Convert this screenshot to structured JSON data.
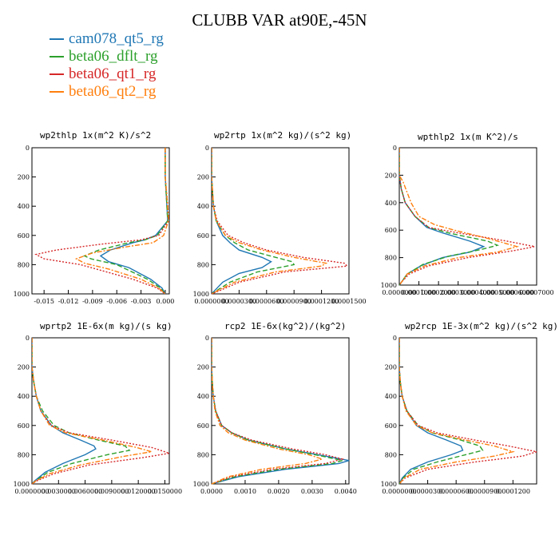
{
  "title": "CLUBB VAR at90E,-45N",
  "legend": [
    {
      "name": "cam078_qt5_rg",
      "color": "#1f77b4"
    },
    {
      "name": "beta06_dflt_rg",
      "color": "#2ca02c"
    },
    {
      "name": "beta06_qt1_rg",
      "color": "#d62728"
    },
    {
      "name": "beta06_qt2_rg",
      "color": "#ff7f0e"
    }
  ],
  "chart_data": [
    {
      "type": "line",
      "title": "wp2thlp  1x(m^2 K)/s^2",
      "xlim": [
        -0.0165,
        0.0005
      ],
      "ylim": [
        1000,
        0
      ],
      "x_ticks": [
        "-0.015",
        "-0.012",
        "-0.009",
        "-0.006",
        "-0.003",
        "0.000"
      ],
      "x_tick_values": [
        -0.015,
        -0.012,
        -0.009,
        -0.006,
        -0.003,
        0.0
      ],
      "y_ticks": [
        "0",
        "200",
        "400",
        "600",
        "800",
        "1000"
      ],
      "y_tick_values": [
        0,
        200,
        400,
        600,
        800,
        1000
      ],
      "series": [
        {
          "name": "cam078_qt5_rg",
          "y": [
            0,
            200,
            400,
            500,
            600,
            630,
            650,
            700,
            740,
            780,
            820,
            900,
            960,
            1000
          ],
          "x": [
            0,
            0,
            0.0002,
            0.0003,
            -0.0012,
            -0.0025,
            -0.004,
            -0.0068,
            -0.008,
            -0.007,
            -0.0045,
            -0.0018,
            -0.0004,
            0
          ]
        },
        {
          "name": "beta06_dflt_rg",
          "y": [
            0,
            200,
            400,
            500,
            600,
            630,
            650,
            700,
            740,
            760,
            800,
            900,
            960,
            1000
          ],
          "x": [
            0,
            0,
            0.0002,
            0.0003,
            -0.001,
            -0.0025,
            -0.0045,
            -0.0082,
            -0.01,
            -0.0092,
            -0.006,
            -0.0022,
            -0.0006,
            0
          ]
        },
        {
          "name": "beta06_qt1_rg",
          "y": [
            0,
            200,
            400,
            500,
            600,
            630,
            660,
            700,
            730,
            760,
            800,
            900,
            960,
            1000
          ],
          "x": [
            0,
            0,
            0.0003,
            0.0004,
            -0.0008,
            -0.003,
            -0.008,
            -0.0135,
            -0.016,
            -0.015,
            -0.0105,
            -0.004,
            -0.001,
            0
          ]
        },
        {
          "name": "beta06_qt2_rg",
          "y": [
            0,
            200,
            400,
            500,
            600,
            650,
            680,
            720,
            760,
            790,
            830,
            900,
            960,
            1000
          ],
          "x": [
            0,
            0,
            0.0003,
            0.0004,
            -0.0002,
            -0.0015,
            -0.005,
            -0.009,
            -0.011,
            -0.01,
            -0.007,
            -0.003,
            -0.0008,
            0
          ]
        }
      ]
    },
    {
      "type": "line",
      "title": "wp2rtp  1x(m^2 kg)/(s^2 kg)",
      "xlim": [
        0,
        0.0015
      ],
      "ylim": [
        1000,
        0
      ],
      "x_ticks": [
        "0.0000000",
        "0.0000300",
        "0.0000600",
        "0.0000900",
        "0.0001200",
        "0.0001500"
      ],
      "x_tick_values": [
        0,
        0.0003,
        0.0006,
        0.0009,
        0.0012,
        0.0015
      ],
      "y_ticks": [
        "0",
        "200",
        "400",
        "600",
        "800",
        "1000"
      ],
      "y_tick_values": [
        0,
        200,
        400,
        600,
        800,
        1000
      ],
      "series": [
        {
          "name": "cam078_qt5_rg",
          "y": [
            0,
            200,
            400,
            500,
            600,
            650,
            700,
            750,
            780,
            820,
            860,
            920,
            980,
            1000
          ],
          "x": [
            0,
            0,
            2e-05,
            5e-05,
            0.00012,
            0.0002,
            0.0003,
            0.00055,
            0.00065,
            0.00055,
            0.0003,
            0.00012,
            3e-05,
            0
          ]
        },
        {
          "name": "beta06_dflt_rg",
          "y": [
            0,
            200,
            400,
            500,
            600,
            650,
            700,
            750,
            780,
            800,
            850,
            920,
            980,
            1000
          ],
          "x": [
            0,
            0,
            2e-05,
            5e-05,
            0.00015,
            0.00025,
            0.0004,
            0.0007,
            0.00088,
            0.0009,
            0.0005,
            0.0002,
            5e-05,
            0
          ]
        },
        {
          "name": "beta06_qt1_rg",
          "y": [
            0,
            200,
            400,
            500,
            600,
            650,
            700,
            750,
            790,
            810,
            850,
            920,
            980,
            1000
          ],
          "x": [
            0,
            0,
            2e-05,
            6e-05,
            0.00018,
            0.00035,
            0.0006,
            0.001,
            0.00145,
            0.00148,
            0.0008,
            0.0003,
            8e-05,
            0
          ]
        },
        {
          "name": "beta06_qt2_rg",
          "y": [
            0,
            200,
            400,
            500,
            600,
            650,
            700,
            750,
            790,
            810,
            850,
            920,
            980,
            1000
          ],
          "x": [
            0,
            0,
            2e-05,
            5e-05,
            0.00015,
            0.0003,
            0.00055,
            0.0009,
            0.00125,
            0.0012,
            0.0007,
            0.00025,
            6e-05,
            0
          ]
        }
      ]
    },
    {
      "type": "line",
      "title": "wpthlp2  1x(m K^2)/s",
      "xlim": [
        0,
        0.0007
      ],
      "ylim": [
        1000,
        0
      ],
      "x_ticks": [
        "0.0000000",
        "0.0001000",
        "0.0002000",
        "0.0003000",
        "0.0004000",
        "0.0005000",
        "0.0006000",
        "0.0007000"
      ],
      "x_tick_values": [
        0,
        0.0001,
        0.0002,
        0.0003,
        0.0004,
        0.0005,
        0.0006,
        0.0007
      ],
      "y_ticks": [
        "0",
        "200",
        "400",
        "600",
        "800",
        "1000"
      ],
      "y_tick_values": [
        0,
        200,
        400,
        600,
        800,
        1000
      ],
      "series": [
        {
          "name": "cam078_qt5_rg",
          "y": [
            0,
            200,
            300,
            400,
            500,
            580,
            620,
            680,
            720,
            760,
            800,
            860,
            920,
            980,
            1000
          ],
          "x": [
            0,
            0,
            1e-05,
            3e-05,
            8e-05,
            0.00014,
            0.00022,
            0.00036,
            0.00043,
            0.00036,
            0.00022,
            0.00011,
            4e-05,
            1e-05,
            0
          ]
        },
        {
          "name": "beta06_dflt_rg",
          "y": [
            0,
            200,
            300,
            400,
            500,
            580,
            620,
            680,
            710,
            740,
            790,
            850,
            920,
            980,
            1000
          ],
          "x": [
            0,
            0,
            1e-05,
            3e-05,
            8e-05,
            0.00015,
            0.00025,
            0.00045,
            0.0005,
            0.00042,
            0.00025,
            0.00012,
            4e-05,
            1e-05,
            0
          ]
        },
        {
          "name": "beta06_qt1_rg",
          "y": [
            0,
            200,
            300,
            400,
            500,
            580,
            620,
            680,
            720,
            750,
            800,
            860,
            920,
            980,
            1000
          ],
          "x": [
            0,
            0,
            1e-05,
            3e-05,
            8e-05,
            0.00015,
            0.0003,
            0.00055,
            0.00069,
            0.00058,
            0.00035,
            0.00015,
            5e-05,
            1e-05,
            0
          ]
        },
        {
          "name": "beta06_qt2_rg",
          "y": [
            0,
            200,
            250,
            400,
            500,
            560,
            600,
            660,
            720,
            760,
            800,
            860,
            920,
            980,
            1000
          ],
          "x": [
            0,
            0,
            2e-05,
            6e-05,
            0.0001,
            0.00018,
            0.00028,
            0.00045,
            0.0006,
            0.0005,
            0.0003,
            0.00013,
            4e-05,
            1e-05,
            0
          ]
        }
      ]
    },
    {
      "type": "line",
      "title": "wprtp2  1E-6x(m kg)/(s kg)",
      "xlim": [
        0,
        0.0155
      ],
      "ylim": [
        1000,
        0
      ],
      "x_ticks": [
        "0.0000000",
        "0.0030000",
        "0.0060000",
        "0.0090000",
        "0.0120000",
        "0.0150000"
      ],
      "x_tick_values": [
        0,
        0.003,
        0.006,
        0.009,
        0.012,
        0.015
      ],
      "y_ticks": [
        "0",
        "200",
        "400",
        "600",
        "800",
        "1000"
      ],
      "y_tick_values": [
        0,
        200,
        400,
        600,
        800,
        1000
      ],
      "series": [
        {
          "name": "cam078_qt5_rg",
          "y": [
            0,
            200,
            300,
            400,
            500,
            600,
            650,
            700,
            740,
            760,
            800,
            860,
            920,
            980,
            1000
          ],
          "x": [
            0,
            0,
            0.0002,
            0.0005,
            0.001,
            0.0022,
            0.0035,
            0.0055,
            0.007,
            0.0072,
            0.006,
            0.0035,
            0.0015,
            0.0003,
            0
          ]
        },
        {
          "name": "beta06_dflt_rg",
          "y": [
            0,
            200,
            300,
            400,
            500,
            600,
            650,
            700,
            740,
            770,
            800,
            860,
            920,
            980,
            1000
          ],
          "x": [
            0,
            0,
            0.0002,
            0.0005,
            0.0012,
            0.0025,
            0.0042,
            0.0075,
            0.0105,
            0.011,
            0.0085,
            0.0045,
            0.0018,
            0.0004,
            0
          ]
        },
        {
          "name": "beta06_qt1_rg",
          "y": [
            0,
            200,
            300,
            400,
            500,
            600,
            650,
            700,
            750,
            790,
            820,
            870,
            930,
            980,
            1000
          ],
          "x": [
            0,
            0,
            0.0002,
            0.0005,
            0.001,
            0.0022,
            0.0042,
            0.009,
            0.0135,
            0.0155,
            0.0125,
            0.0065,
            0.0025,
            0.0005,
            0
          ]
        },
        {
          "name": "beta06_qt2_rg",
          "y": [
            0,
            200,
            300,
            400,
            500,
            600,
            650,
            700,
            750,
            780,
            810,
            870,
            930,
            980,
            1000
          ],
          "x": [
            0,
            0,
            0.0002,
            0.0005,
            0.001,
            0.002,
            0.0038,
            0.008,
            0.0118,
            0.0135,
            0.0105,
            0.0055,
            0.002,
            0.0004,
            0
          ]
        }
      ]
    },
    {
      "type": "line",
      "title": "rcp2  1E-6x(kg^2)/(kg^2)",
      "xlim": [
        0,
        0.0041
      ],
      "ylim": [
        1000,
        0
      ],
      "x_ticks": [
        "0.0000",
        "0.0010",
        "0.0020",
        "0.0030",
        "0.0040"
      ],
      "x_tick_values": [
        0,
        0.001,
        0.002,
        0.003,
        0.004
      ],
      "y_ticks": [
        "0",
        "200",
        "400",
        "600",
        "800",
        "1000"
      ],
      "y_tick_values": [
        0,
        200,
        400,
        600,
        800,
        1000
      ],
      "series": [
        {
          "name": "cam078_qt5_rg",
          "y": [
            0,
            200,
            300,
            400,
            500,
            600,
            650,
            700,
            760,
            810,
            840,
            860,
            900,
            950,
            1000
          ],
          "x": [
            0,
            0,
            2e-05,
            5e-05,
            0.00012,
            0.0003,
            0.0006,
            0.0011,
            0.0022,
            0.0034,
            0.0041,
            0.0038,
            0.0022,
            0.0008,
            0
          ]
        },
        {
          "name": "beta06_dflt_rg",
          "y": [
            0,
            200,
            300,
            400,
            500,
            600,
            650,
            700,
            760,
            810,
            840,
            860,
            900,
            950,
            1000
          ],
          "x": [
            0,
            0,
            2e-05,
            5e-05,
            0.00012,
            0.0003,
            0.0006,
            0.0011,
            0.0022,
            0.0033,
            0.0039,
            0.0036,
            0.002,
            0.0007,
            0
          ]
        },
        {
          "name": "beta06_qt1_rg",
          "y": [
            0,
            200,
            300,
            400,
            500,
            600,
            650,
            700,
            760,
            800,
            830,
            860,
            900,
            950,
            1000
          ],
          "x": [
            0,
            0,
            2e-05,
            5e-05,
            0.00012,
            0.0003,
            0.0006,
            0.0012,
            0.0024,
            0.0034,
            0.0039,
            0.0034,
            0.0018,
            0.0006,
            0
          ]
        },
        {
          "name": "beta06_qt2_rg",
          "y": [
            0,
            200,
            300,
            400,
            500,
            600,
            650,
            700,
            760,
            800,
            830,
            860,
            900,
            950,
            1000
          ],
          "x": [
            0,
            0,
            2e-05,
            5e-05,
            0.0001,
            0.00025,
            0.0005,
            0.001,
            0.002,
            0.0029,
            0.0033,
            0.0028,
            0.0015,
            0.0005,
            0
          ]
        }
      ]
    },
    {
      "type": "line",
      "title": "wp2rcp  1E-3x(m^2 kg)/(s^2 kg)",
      "xlim": [
        0,
        0.00145
      ],
      "ylim": [
        1000,
        0
      ],
      "x_ticks": [
        "0.0000000",
        "0.0000300",
        "0.0000600",
        "0.0000900",
        "0.0001200"
      ],
      "x_tick_values": [
        0,
        0.0003,
        0.0006,
        0.0009,
        0.0012
      ],
      "y_ticks": [
        "0",
        "200",
        "400",
        "600",
        "800",
        "1000"
      ],
      "y_tick_values": [
        0,
        200,
        400,
        600,
        800,
        1000
      ],
      "series": [
        {
          "name": "cam078_qt5_rg",
          "y": [
            0,
            200,
            300,
            400,
            500,
            600,
            650,
            700,
            740,
            770,
            800,
            850,
            900,
            960,
            1000
          ],
          "x": [
            0,
            0,
            1e-05,
            3e-05,
            8e-05,
            0.00018,
            0.0003,
            0.0005,
            0.00065,
            0.00067,
            0.00055,
            0.0003,
            0.00012,
            3e-05,
            0
          ]
        },
        {
          "name": "beta06_dflt_rg",
          "y": [
            0,
            200,
            300,
            400,
            500,
            600,
            650,
            700,
            740,
            770,
            800,
            850,
            900,
            960,
            1000
          ],
          "x": [
            0,
            0,
            1e-05,
            3e-05,
            8e-05,
            0.0002,
            0.00035,
            0.00065,
            0.00085,
            0.00088,
            0.0007,
            0.0004,
            0.00015,
            4e-05,
            0
          ]
        },
        {
          "name": "beta06_qt1_rg",
          "y": [
            0,
            200,
            300,
            400,
            500,
            600,
            650,
            700,
            740,
            780,
            810,
            850,
            900,
            960,
            1000
          ],
          "x": [
            0,
            0,
            1e-05,
            3e-05,
            8e-05,
            0.0002,
            0.0004,
            0.0008,
            0.00115,
            0.00145,
            0.0013,
            0.0008,
            0.0003,
            6e-05,
            0
          ]
        },
        {
          "name": "beta06_qt2_rg",
          "y": [
            0,
            200,
            300,
            400,
            500,
            600,
            650,
            700,
            740,
            780,
            810,
            850,
            900,
            960,
            1000
          ],
          "x": [
            0,
            0,
            1e-05,
            3e-05,
            7e-05,
            0.00018,
            0.00035,
            0.0007,
            0.001,
            0.0012,
            0.001,
            0.0006,
            0.00022,
            5e-05,
            0
          ]
        }
      ]
    }
  ]
}
